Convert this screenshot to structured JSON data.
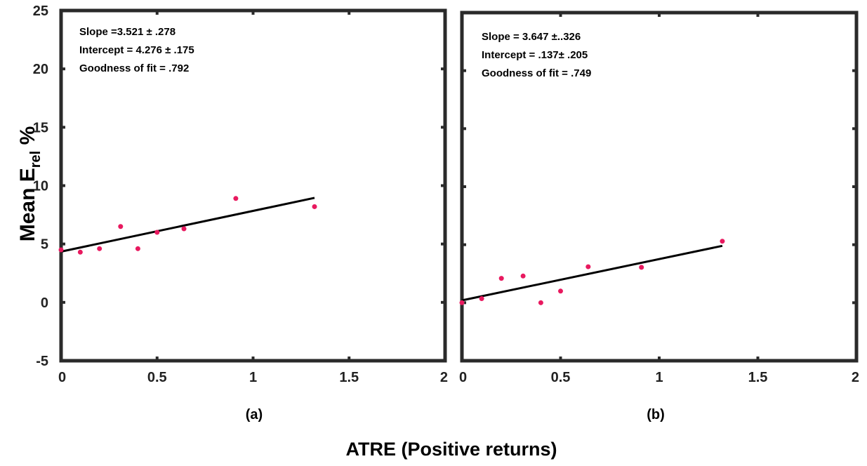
{
  "figure": {
    "xlabel": "ATRE (Positive returns)",
    "ylabel": {
      "main": "Mean E",
      "sub": "rel",
      "suffix": " %"
    }
  },
  "chart_data": [
    {
      "type": "scatter",
      "panel_label": "(a)",
      "title": "",
      "xlabel": "ATRE (Positive returns)",
      "ylabel": "Mean E rel %",
      "xlim": [
        0,
        2
      ],
      "ylim": [
        -5,
        25
      ],
      "xticks": [
        "0",
        "0.5",
        "1",
        "1.5",
        "2"
      ],
      "yticks": [
        "-5",
        "0",
        "5",
        "10",
        "15",
        "20",
        "25"
      ],
      "annotations": [
        "Slope =3.521 ± .278",
        "Intercept = 4.276 ± .175",
        "Goodness of fit = .792"
      ],
      "point_color": "#e8195f",
      "line_color": "#000000",
      "points": [
        {
          "x": 0.0,
          "y": 4.5
        },
        {
          "x": 0.1,
          "y": 4.3
        },
        {
          "x": 0.2,
          "y": 4.6
        },
        {
          "x": 0.31,
          "y": 6.5
        },
        {
          "x": 0.4,
          "y": 4.6
        },
        {
          "x": 0.5,
          "y": 6.0
        },
        {
          "x": 0.64,
          "y": 6.3
        },
        {
          "x": 0.91,
          "y": 8.9
        },
        {
          "x": 1.32,
          "y": 8.2
        }
      ],
      "fit_line": {
        "x": [
          0.0,
          1.32
        ],
        "y": [
          4.35,
          8.95
        ]
      }
    },
    {
      "type": "scatter",
      "panel_label": "(b)",
      "title": "",
      "xlabel": "ATRE (Positive returns)",
      "ylabel": "",
      "xlim": [
        0,
        2
      ],
      "ylim": [
        -5,
        25
      ],
      "xticks": [
        "0",
        "0.5",
        "1",
        "1.5",
        "2"
      ],
      "annotations": [
        "Slope = 3.647 ±..326",
        "Intercept = .137± .205",
        "Goodness of fit = .749"
      ],
      "point_color": "#e8195f",
      "line_color": "#000000",
      "points": [
        {
          "x": 0.0,
          "y": 0.0
        },
        {
          "x": 0.1,
          "y": 0.35
        },
        {
          "x": 0.2,
          "y": 2.1
        },
        {
          "x": 0.31,
          "y": 2.3
        },
        {
          "x": 0.4,
          "y": 0.0
        },
        {
          "x": 0.5,
          "y": 1.0
        },
        {
          "x": 0.64,
          "y": 3.1
        },
        {
          "x": 0.91,
          "y": 3.05
        },
        {
          "x": 1.32,
          "y": 5.3
        }
      ],
      "fit_line": {
        "x": [
          0.0,
          1.32
        ],
        "y": [
          0.2,
          4.9
        ]
      }
    }
  ]
}
